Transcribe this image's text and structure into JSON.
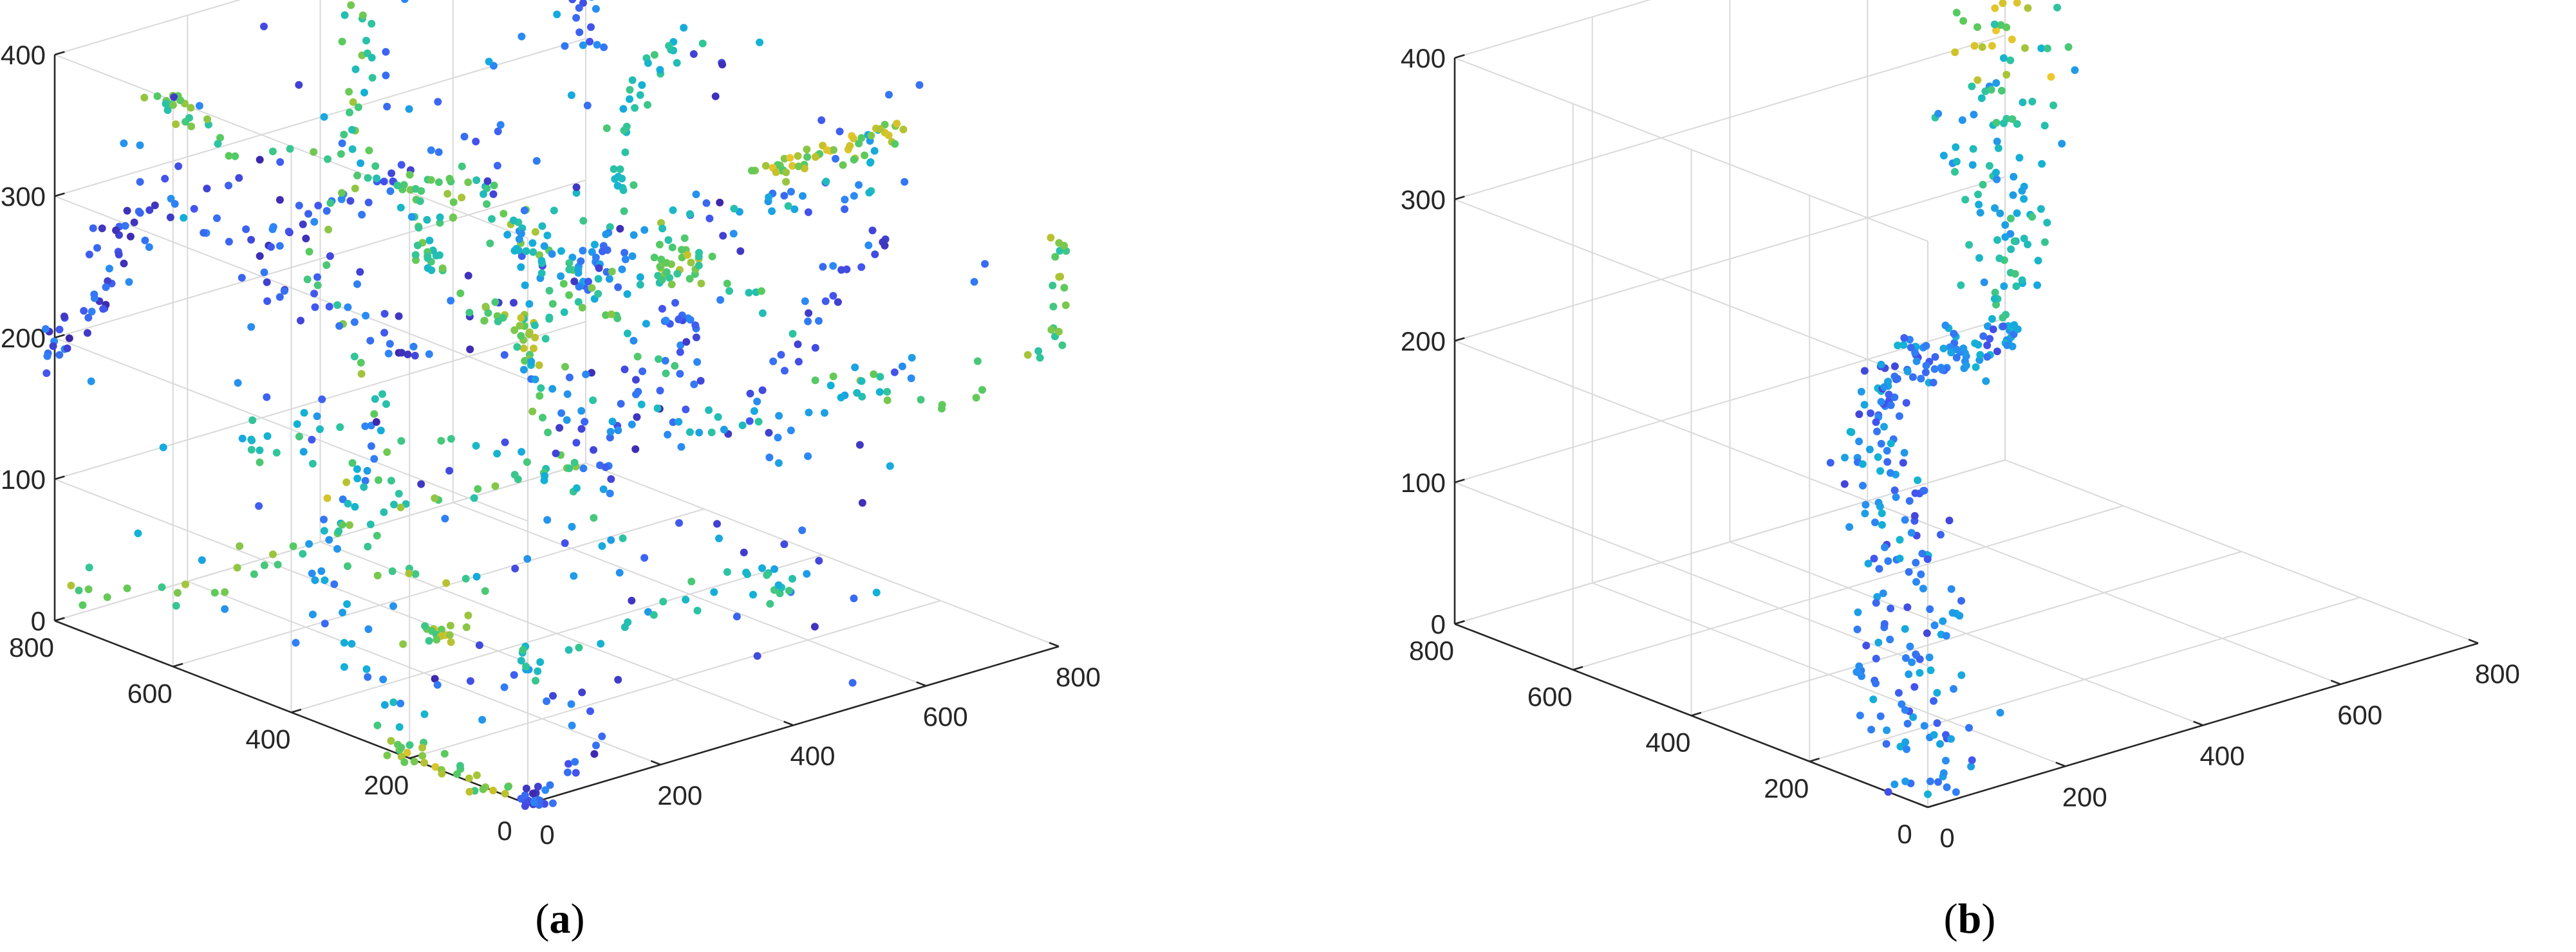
{
  "figure": {
    "panels": [
      {
        "caption_letter": "a"
      },
      {
        "caption_letter": "b"
      }
    ]
  },
  "chart_data": [
    {
      "type": "scatter",
      "title": "",
      "caption": "(a)",
      "projection": "3d",
      "xlabel": "",
      "ylabel": "",
      "zlabel": "",
      "xlim": [
        0,
        800
      ],
      "ylim": [
        0,
        800
      ],
      "zlim": [
        0,
        400
      ],
      "xticks": [
        0,
        200,
        400,
        600,
        800
      ],
      "yticks": [
        0,
        200,
        400,
        600,
        800
      ],
      "zticks": [
        0,
        100,
        200,
        300,
        400
      ],
      "grid": true,
      "colormap": "parula",
      "color_scale": [
        "#3e26a8",
        "#4354ee",
        "#2c87f6",
        "#12b1d7",
        "#2dc4a0",
        "#5bca5c",
        "#c9c129",
        "#f9c930"
      ],
      "distribution": "about 1000 points spread through the whole 800 x 800 x 400 volume in branching clusters"
    },
    {
      "type": "scatter",
      "title": "",
      "caption": "(b)",
      "projection": "3d",
      "xlabel": "",
      "ylabel": "",
      "zlabel": "",
      "xlim": [
        0,
        800
      ],
      "ylim": [
        0,
        800
      ],
      "zlim": [
        0,
        400
      ],
      "xticks": [
        0,
        200,
        400,
        600,
        800
      ],
      "yticks": [
        0,
        200,
        400,
        600,
        800
      ],
      "zticks": [
        0,
        100,
        200,
        300,
        400
      ],
      "grid": true,
      "colormap": "parula",
      "color_scale": [
        "#3e26a8",
        "#4354ee",
        "#2c87f6",
        "#12b1d7",
        "#2dc4a0",
        "#5bca5c",
        "#c9c129",
        "#f9c930"
      ],
      "distribution": "about 400 points along a single trail rising from about (0, 0, 0) near the front corner to about (800, 800, 400) at the back top corner"
    }
  ]
}
